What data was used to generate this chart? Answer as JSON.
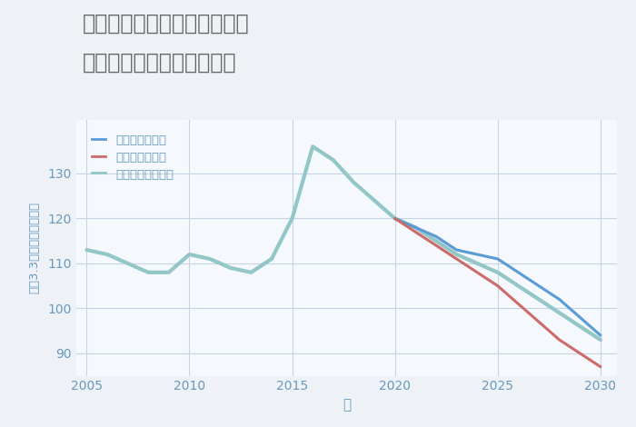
{
  "title_line1": "大阪府堺市中区八田南之町の",
  "title_line2": "中古マンションの価格推移",
  "xlabel": "年",
  "ylabel": "坪（3.3㎡）単価（万円）",
  "background_color": "#eef2f7",
  "plot_bg_color": "#f5f8fc",
  "grid_color": "#c5d5e5",
  "title_color": "#666666",
  "tick_color": "#6699bb",
  "xlim": [
    2004.5,
    2030.8
  ],
  "ylim": [
    85,
    142
  ],
  "yticks": [
    90,
    100,
    110,
    120,
    130
  ],
  "xticks": [
    2005,
    2010,
    2015,
    2020,
    2025,
    2030
  ],
  "historical_years": [
    2005,
    2006,
    2007,
    2008,
    2009,
    2010,
    2011,
    2012,
    2013,
    2014,
    2015,
    2016,
    2017,
    2018,
    2019,
    2020
  ],
  "historical_values": [
    113,
    112,
    110,
    108,
    108,
    112,
    111,
    109,
    108,
    111,
    120,
    136,
    133,
    128,
    124,
    120
  ],
  "good_years": [
    2020,
    2021,
    2022,
    2023,
    2024,
    2025,
    2026,
    2027,
    2028,
    2029,
    2030
  ],
  "good_values": [
    120,
    118,
    116,
    113,
    112,
    111,
    108,
    105,
    102,
    98,
    94
  ],
  "bad_years": [
    2020,
    2021,
    2022,
    2023,
    2024,
    2025,
    2026,
    2027,
    2028,
    2029,
    2030
  ],
  "bad_values": [
    120,
    117,
    114,
    111,
    108,
    105,
    101,
    97,
    93,
    90,
    87
  ],
  "normal_years": [
    2020,
    2021,
    2022,
    2023,
    2024,
    2025,
    2026,
    2027,
    2028,
    2029,
    2030
  ],
  "normal_values": [
    120,
    118,
    115,
    112,
    110,
    108,
    105,
    102,
    99,
    96,
    93
  ],
  "good_color": "#5b9bd5",
  "bad_color": "#cd6b6b",
  "normal_color": "#93c6c6",
  "hist_color": "#93c6c6",
  "legend_labels": [
    "グッドシナリオ",
    "バッドシナリオ",
    "ノーマルシナリオ"
  ],
  "linewidth": 2.2
}
